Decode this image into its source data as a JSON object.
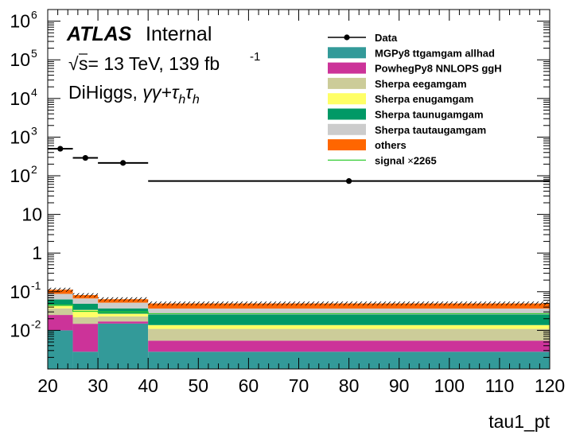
{
  "labels": {
    "atlas": "ATLAS",
    "internal": "Internal",
    "energy_line_a": "s= 13 TeV, 139 fb",
    "energy_line_exp": "-1",
    "sqrt_symbol": "√",
    "channel_prefix": "DiHiggs, ",
    "channel_formula": "γγ+τhτh"
  },
  "chart_data": {
    "type": "bar",
    "subtype": "stacked-histogram-log",
    "xlabel": "tau1_pt",
    "ylabel": "",
    "title": "",
    "xlim": [
      20,
      120
    ],
    "ylim": [
      0.001,
      2000000
    ],
    "yscale": "log",
    "x_ticks": [
      20,
      30,
      40,
      50,
      60,
      70,
      80,
      90,
      100,
      110,
      120
    ],
    "y_ticks": [
      {
        "value": 0.01,
        "label": "10",
        "exp": "-2"
      },
      {
        "value": 0.1,
        "label": "10",
        "exp": "-1"
      },
      {
        "value": 1,
        "label": "1",
        "exp": ""
      },
      {
        "value": 10,
        "label": "10",
        "exp": ""
      },
      {
        "value": 100,
        "label": "10",
        "exp": "2"
      },
      {
        "value": 1000,
        "label": "10",
        "exp": "3"
      },
      {
        "value": 10000,
        "label": "10",
        "exp": "4"
      },
      {
        "value": 100000,
        "label": "10",
        "exp": "5"
      },
      {
        "value": 1000000,
        "label": "10",
        "exp": "6"
      }
    ],
    "bins": [
      [
        20,
        25
      ],
      [
        25,
        30
      ],
      [
        30,
        40
      ],
      [
        40,
        120
      ]
    ],
    "stack_series": [
      {
        "name": "MGPy8 ttgamgam allhad",
        "color": "#339a99",
        "values": [
          0.01,
          0.0028,
          0.015,
          0.0028
        ]
      },
      {
        "name": "PowhegPy8 NNLOPS ggH",
        "color": "#cc3399",
        "values": [
          0.015,
          0.012,
          0.002,
          0.0026
        ]
      },
      {
        "name": "Sherpa eegamgam",
        "color": "#cccc99",
        "values": [
          0.012,
          0.007,
          0.006,
          0.0055
        ]
      },
      {
        "name": "Sherpa enugamgam",
        "color": "#ffff66",
        "values": [
          0.006,
          0.012,
          0.004,
          0.0028
        ]
      },
      {
        "name": "Sherpa taunugamgam",
        "color": "#009966",
        "values": [
          0.02,
          0.015,
          0.01,
          0.012
        ]
      },
      {
        "name": "Sherpa tautaugamgam",
        "color": "#cccccc",
        "values": [
          0.025,
          0.018,
          0.015,
          0.011
        ]
      },
      {
        "name": "others",
        "color": "#ff6600",
        "values": [
          0.025,
          0.015,
          0.012,
          0.013
        ]
      }
    ],
    "data_series": {
      "name": "Data",
      "points": [
        {
          "x": 22.5,
          "xlo": 20,
          "xhi": 25,
          "y": 500
        },
        {
          "x": 27.5,
          "xlo": 25,
          "xhi": 30,
          "y": 290
        },
        {
          "x": 35,
          "xlo": 30,
          "xhi": 40,
          "y": 215
        },
        {
          "x": 80,
          "xlo": 40,
          "xhi": 120,
          "y": 73
        }
      ]
    },
    "signal_series": {
      "name": "signal",
      "scale_label": "2265",
      "color": "#33cc33",
      "values": [
        0.045,
        0.031,
        0.03,
        0.027
      ]
    },
    "legend": {
      "position": "top-right",
      "entries": [
        {
          "label": "Data",
          "kind": "data"
        },
        {
          "label": "MGPy8 ttgamgam allhad",
          "kind": "box",
          "color": "#339a99"
        },
        {
          "label": "PowhegPy8 NNLOPS ggH",
          "kind": "box",
          "color": "#cc3399"
        },
        {
          "label": "Sherpa eegamgam",
          "kind": "box",
          "color": "#cccc99"
        },
        {
          "label": "Sherpa enugamgam",
          "kind": "box",
          "color": "#ffff66"
        },
        {
          "label": "Sherpa taunugamgam",
          "kind": "box",
          "color": "#009966"
        },
        {
          "label": "Sherpa tautaugamgam",
          "kind": "box",
          "color": "#cccccc"
        },
        {
          "label": "others",
          "kind": "box",
          "color": "#ff6600"
        },
        {
          "label": "signal",
          "kind": "line",
          "color": "#33cc33",
          "suffix": "2265",
          "times": "×"
        }
      ]
    }
  }
}
